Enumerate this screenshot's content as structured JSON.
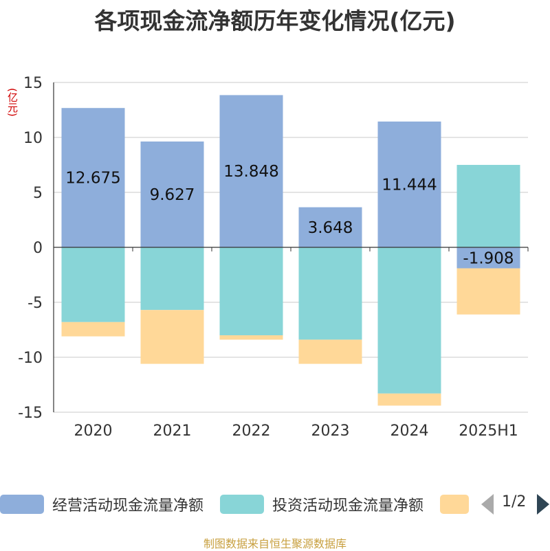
{
  "title": "各项现金流净额历年变化情况(亿元)",
  "unit_label": "(亿元)",
  "source": "制图数据来自恒生聚源数据库",
  "legend": {
    "items": [
      {
        "label": "经营活动现金流量净额",
        "color": "#8eaedb"
      },
      {
        "label": "投资活动现金流量净额",
        "color": "#88d5d7"
      },
      {
        "label": "",
        "color": "#ffd898"
      }
    ],
    "page": "1/2"
  },
  "chart_data": {
    "type": "bar",
    "stacked": true,
    "categories": [
      "2020",
      "2021",
      "2022",
      "2023",
      "2024",
      "2025H1"
    ],
    "series": [
      {
        "name": "经营活动现金流量净额",
        "color": "#8eaedb",
        "values": [
          12.675,
          9.627,
          13.848,
          3.648,
          11.444,
          -1.908
        ],
        "labels": [
          "12.675",
          "9.627",
          "13.848",
          "3.648",
          "11.444",
          "-1.908"
        ]
      },
      {
        "name": "投资活动现金流量净额",
        "color": "#88d5d7",
        "values": [
          -6.8,
          -5.7,
          -8.0,
          -8.4,
          -13.3,
          7.5
        ]
      },
      {
        "name": "",
        "color": "#ffd898",
        "values": [
          -1.3,
          -4.9,
          -0.4,
          -2.2,
          -1.1,
          -4.2
        ]
      }
    ],
    "ylim": [
      -15,
      15
    ],
    "yticks": [
      -15,
      -10,
      -5,
      0,
      5,
      10,
      15
    ],
    "grid": true,
    "legend_position": "bottom"
  }
}
